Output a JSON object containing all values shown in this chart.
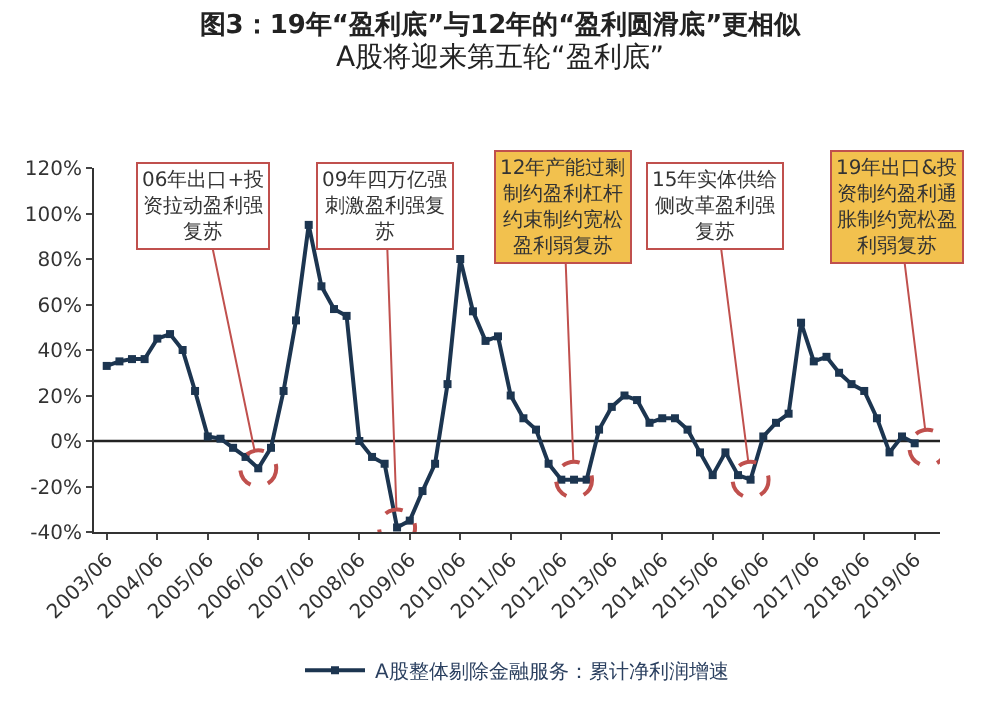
{
  "chart_data": {
    "type": "line",
    "title": "图3：19年“盈利底”与12年的“盈利圆滑底”更相似",
    "subtitle": "A股将迎来第五轮“盈利底”",
    "x": [
      "2003-06",
      "2003-09",
      "2003-12",
      "2004-03",
      "2004-06",
      "2004-09",
      "2004-12",
      "2005-03",
      "2005-06",
      "2005-09",
      "2005-12",
      "2006-03",
      "2006-06",
      "2006-09",
      "2006-12",
      "2007-03",
      "2007-06",
      "2007-09",
      "2007-12",
      "2008-03",
      "2008-06",
      "2008-09",
      "2008-12",
      "2009-03",
      "2009-06",
      "2009-09",
      "2009-12",
      "2010-03",
      "2010-06",
      "2010-09",
      "2010-12",
      "2011-03",
      "2011-06",
      "2011-09",
      "2011-12",
      "2012-03",
      "2012-06",
      "2012-09",
      "2012-12",
      "2013-03",
      "2013-06",
      "2013-09",
      "2013-12",
      "2014-03",
      "2014-06",
      "2014-09",
      "2014-12",
      "2015-03",
      "2015-06",
      "2015-09",
      "2015-12",
      "2016-03",
      "2016-06",
      "2016-09",
      "2016-12",
      "2017-03",
      "2017-06",
      "2017-09",
      "2017-12",
      "2018-03",
      "2018-06",
      "2018-09",
      "2018-12",
      "2019-03",
      "2019-06"
    ],
    "series": [
      {
        "name": "A股整体剔除金融服务：累计净利润增速",
        "color": "#1c3550",
        "values": [
          33,
          35,
          36,
          36,
          45,
          47,
          40,
          22,
          2,
          1,
          -3,
          -7,
          -12,
          -3,
          22,
          53,
          95,
          68,
          58,
          55,
          0,
          -7,
          -10,
          -38,
          -35,
          -22,
          -10,
          25,
          80,
          57,
          44,
          46,
          20,
          10,
          5,
          -10,
          -17,
          -17,
          -17,
          5,
          15,
          20,
          18,
          8,
          10,
          10,
          5,
          -5,
          -15,
          -5,
          -15,
          -17,
          2,
          8,
          12,
          52,
          35,
          37,
          30,
          25,
          22,
          10,
          -5,
          2,
          -1
        ]
      }
    ],
    "xlim": [
      "2003-03",
      "2019-12"
    ],
    "xticks": [
      {
        "value": "2003-06",
        "label": "2003/06"
      },
      {
        "value": "2004-06",
        "label": "2004/06"
      },
      {
        "value": "2005-06",
        "label": "2005/06"
      },
      {
        "value": "2006-06",
        "label": "2006/06"
      },
      {
        "value": "2007-06",
        "label": "2007/06"
      },
      {
        "value": "2008-06",
        "label": "2008/06"
      },
      {
        "value": "2009-06",
        "label": "2009/06"
      },
      {
        "value": "2010-06",
        "label": "2010/06"
      },
      {
        "value": "2011-06",
        "label": "2011/06"
      },
      {
        "value": "2012-06",
        "label": "2012/06"
      },
      {
        "value": "2013-06",
        "label": "2013/06"
      },
      {
        "value": "2014-06",
        "label": "2014/06"
      },
      {
        "value": "2015-06",
        "label": "2015/06"
      },
      {
        "value": "2016-06",
        "label": "2016/06"
      },
      {
        "value": "2017-06",
        "label": "2017/06"
      },
      {
        "value": "2018-06",
        "label": "2018/06"
      },
      {
        "value": "2019-06",
        "label": "2019/06"
      }
    ],
    "ylim": [
      -40,
      120
    ],
    "yticks": [
      {
        "value": -40,
        "label": "-40%"
      },
      {
        "value": -20,
        "label": "-20%"
      },
      {
        "value": 0,
        "label": "0%"
      },
      {
        "value": 20,
        "label": "20%"
      },
      {
        "value": 40,
        "label": "40%"
      },
      {
        "value": 60,
        "label": "60%"
      },
      {
        "value": 80,
        "label": "80%"
      },
      {
        "value": 100,
        "label": "100%"
      },
      {
        "value": 120,
        "label": "120%"
      }
    ],
    "annotations": [
      {
        "text": "06年出口+投资拉动盈利强复苏",
        "x": "2006-06",
        "y": -12
      },
      {
        "text": "09年四万亿强刺激盈利强复苏",
        "x": "2009-03",
        "y": -38
      },
      {
        "text": "12年产能过剩制约盈利杠杆约束制约宽松盈利弱复苏",
        "x": "2012-09",
        "y": -17
      },
      {
        "text": "15年实体供给侧改革盈利强复苏",
        "x": "2016-03",
        "y": -17
      },
      {
        "text": "19年出口&投资制约盈利通胀制约宽松盈利弱复苏",
        "x": "2019-09",
        "y": -3
      }
    ],
    "ref_lines": [
      {
        "axis": "y",
        "value": 0,
        "color": "#222222"
      }
    ],
    "marker": "square",
    "line_style": "solid",
    "grid": false,
    "legend": "bottom"
  }
}
